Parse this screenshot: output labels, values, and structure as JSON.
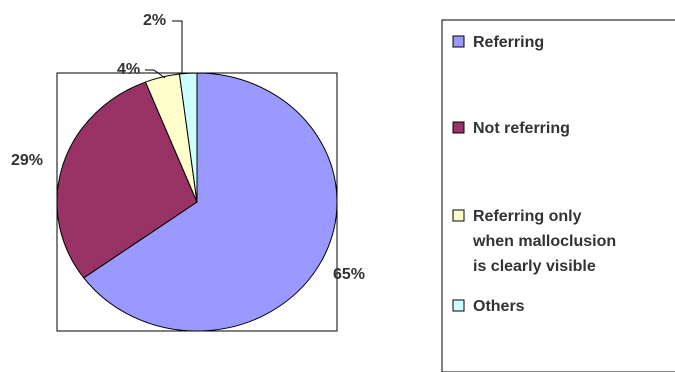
{
  "chart_data": {
    "type": "pie",
    "categories": [
      "Referring",
      "Not referring",
      "Referring only when malloclusion is clearly visible",
      "Others"
    ],
    "values": [
      65,
      29,
      4,
      2
    ],
    "data_labels": [
      "65%",
      "29%",
      "4%",
      "2%"
    ],
    "colors": [
      "#9999FF",
      "#993366",
      "#FFFFCC",
      "#CCFFFF"
    ],
    "legend": {
      "placement": "right",
      "entries": [
        [
          "Referring"
        ],
        [
          "Not referring"
        ],
        [
          "Referring only",
          "when malloclusion",
          "is clearly visible"
        ],
        [
          "Others"
        ]
      ]
    }
  }
}
